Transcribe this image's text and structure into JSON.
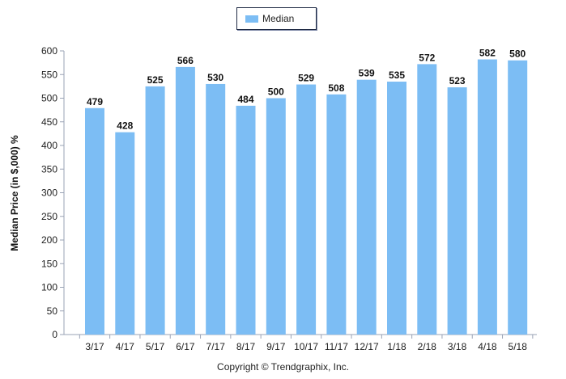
{
  "chart_data": {
    "type": "bar",
    "categories": [
      "3/17",
      "4/17",
      "5/17",
      "6/17",
      "7/17",
      "8/17",
      "9/17",
      "10/17",
      "11/17",
      "12/17",
      "1/18",
      "2/18",
      "3/18",
      "4/18",
      "5/18"
    ],
    "series": [
      {
        "name": "Median",
        "values": [
          479,
          428,
          525,
          566,
          530,
          484,
          500,
          529,
          508,
          539,
          535,
          572,
          523,
          582,
          580
        ]
      }
    ],
    "data_labels": true,
    "ylabel": "Median Price (in $,000) %",
    "xlabel": "",
    "ylim": [
      0,
      600
    ],
    "yticks": [
      0,
      50,
      100,
      150,
      200,
      250,
      300,
      350,
      400,
      450,
      500,
      550,
      600
    ],
    "grid": false,
    "legend_position": "top-center",
    "bar_color": "#7cbdf4",
    "axis_color": "#9aa3b5"
  },
  "footer": {
    "copyright": "Copyright © Trendgraphix, Inc."
  }
}
